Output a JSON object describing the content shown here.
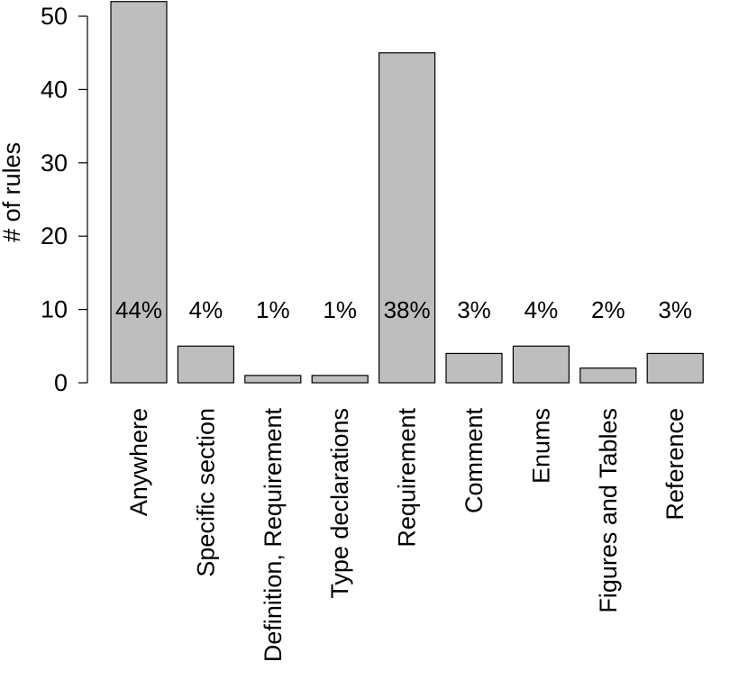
{
  "chart_data": {
    "type": "bar",
    "ylabel": "# of rules",
    "ylim": [
      0,
      52
    ],
    "yticks": [
      0,
      10,
      20,
      30,
      40,
      50
    ],
    "categories": [
      "Anywhere",
      "Specific section",
      "Definition, Requirement",
      "Type declarations",
      "Requirement",
      "Comment",
      "Enums",
      "Figures and Tables",
      "Reference"
    ],
    "values": [
      52,
      5,
      1,
      1,
      45,
      4,
      5,
      2,
      4
    ],
    "percent_labels": [
      "44%",
      "4%",
      "1%",
      "1%",
      "38%",
      "3%",
      "4%",
      "2%",
      "3%"
    ],
    "grid": false,
    "bar_color": "#bebebe"
  }
}
